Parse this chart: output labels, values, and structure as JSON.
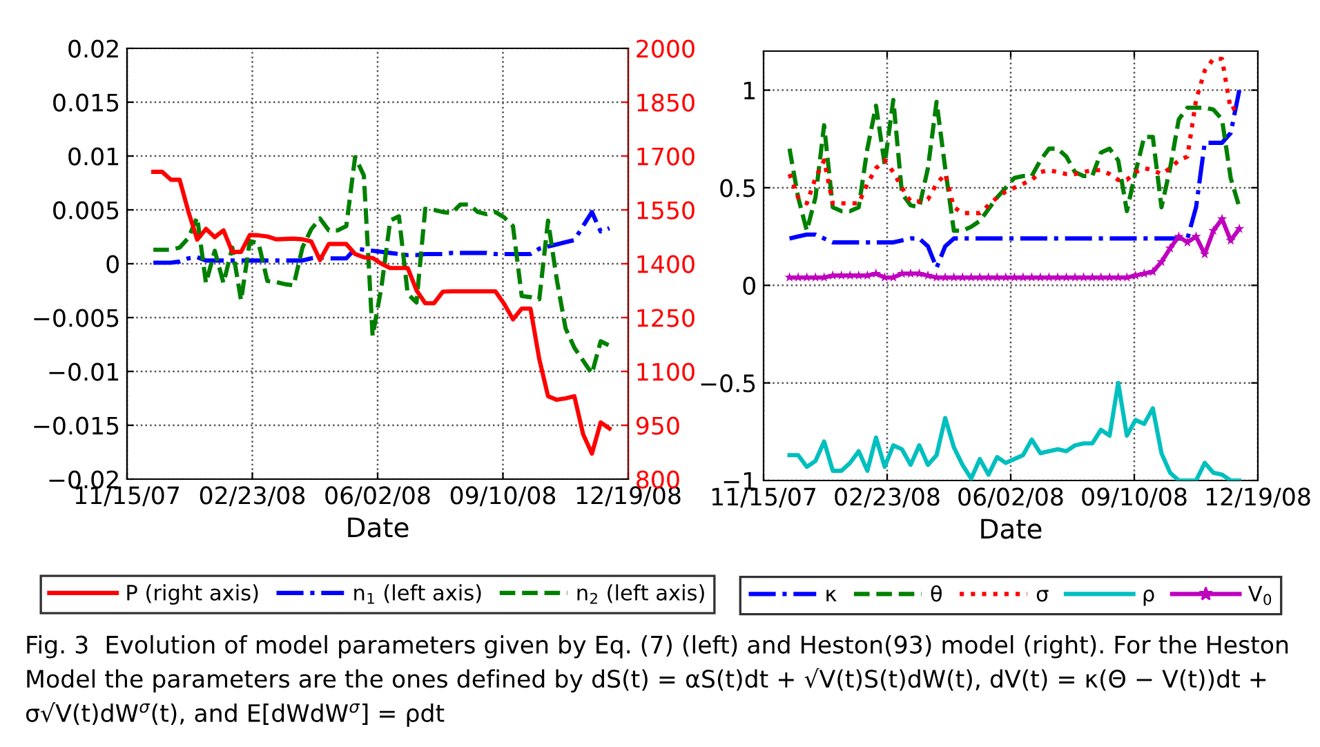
{
  "chart_data": [
    {
      "type": "line",
      "xlabel": "Date",
      "legend": "bottom",
      "grid": true,
      "x": [
        "2007-12-06",
        "2007-12-13",
        "2007-12-20",
        "2007-12-27",
        "2008-01-03",
        "2008-01-10",
        "2008-01-17",
        "2008-01-24",
        "2008-01-31",
        "2008-02-07",
        "2008-02-14",
        "2008-02-21",
        "2008-02-28",
        "2008-03-06",
        "2008-03-13",
        "2008-03-20",
        "2008-03-27",
        "2008-04-03",
        "2008-04-10",
        "2008-04-17",
        "2008-04-24",
        "2008-05-01",
        "2008-05-08",
        "2008-05-15",
        "2008-05-22",
        "2008-05-29",
        "2008-06-05",
        "2008-06-12",
        "2008-06-19",
        "2008-06-26",
        "2008-07-03",
        "2008-07-10",
        "2008-07-17",
        "2008-07-24",
        "2008-07-31",
        "2008-08-07",
        "2008-08-14",
        "2008-08-21",
        "2008-08-28",
        "2008-09-04",
        "2008-09-11",
        "2008-09-18",
        "2008-09-25",
        "2008-10-02",
        "2008-10-09",
        "2008-10-16",
        "2008-10-23",
        "2008-10-30",
        "2008-11-06",
        "2008-11-13",
        "2008-11-20",
        "2008-11-27",
        "2008-12-04"
      ],
      "xlim": [
        "2007-11-15",
        "2008-12-19"
      ],
      "xticks": [
        {
          "value": "2007-11-15",
          "label": "11/15/07"
        },
        {
          "value": "2008-02-23",
          "label": "02/23/08"
        },
        {
          "value": "2008-06-02",
          "label": "06/02/08"
        },
        {
          "value": "2008-09-10",
          "label": "09/10/08"
        },
        {
          "value": "2008-12-19",
          "label": "12/19/08"
        }
      ],
      "ylim": [
        -0.02,
        0.02
      ],
      "yticks": [
        {
          "value": -0.02,
          "label": "−0.02"
        },
        {
          "value": -0.015,
          "label": "−0.015"
        },
        {
          "value": -0.01,
          "label": "−0.01"
        },
        {
          "value": -0.005,
          "label": "−0.005"
        },
        0,
        0.005,
        0.01,
        0.015,
        0.02
      ],
      "y2lim": [
        800,
        2000
      ],
      "y2ticks": [
        800,
        950,
        1100,
        1250,
        1400,
        1550,
        1700,
        1850,
        2000
      ],
      "series": [
        {
          "name": "P (right axis)",
          "color": "#ff0000",
          "axis": "y2",
          "line_style": "solid",
          "values": [
            1656,
            1656,
            1634,
            1634,
            1545,
            1467,
            1497,
            1474,
            1493,
            1433,
            1433,
            1480,
            1479,
            1476,
            1468,
            1469,
            1470,
            1468,
            1462,
            1410,
            1455,
            1455,
            1455,
            1427,
            1418,
            1416,
            1400,
            1388,
            1388,
            1388,
            1326,
            1290,
            1290,
            1322,
            1323,
            1323,
            1323,
            1323,
            1323,
            1323,
            1288,
            1245,
            1275,
            1275,
            1134,
            1031,
            1021,
            1025,
            1031,
            925,
            871,
            958,
            941
          ]
        },
        {
          "name": "n$_{1}$ (left axis)",
          "color": "#0000ff",
          "line_style": "dashdot",
          "values": [
            0.0001,
            0.0001,
            0.0001,
            0.0002,
            0.0005,
            0.0006,
            0.0003,
            0.0003,
            0.0003,
            0.0003,
            0.0003,
            0.0003,
            0.0003,
            0.0003,
            0.0003,
            0.0003,
            0.0003,
            0.0003,
            0.0005,
            0.0006,
            0.0005,
            0.0005,
            0.0005,
            0.0014,
            0.0013,
            0.0012,
            0.0011,
            0.001,
            0.0009,
            0.0008,
            0.0008,
            0.0009,
            0.0009,
            0.0009,
            0.001,
            0.001,
            0.001,
            0.001,
            0.001,
            0.0009,
            0.0009,
            0.0009,
            0.0009,
            0.0009,
            0.0014,
            0.0016,
            0.0018,
            0.002,
            0.0022,
            0.0035,
            0.0048,
            0.003,
            0.0033
          ]
        },
        {
          "name": "n$_{2}$ (left axis)",
          "color": "#008000",
          "line_style": "dashed",
          "values": [
            0.0013,
            0.0013,
            0.0013,
            0.0015,
            0.0024,
            0.0043,
            -0.0018,
            0.0012,
            -0.0018,
            0.0015,
            -0.0034,
            0.0021,
            0.0019,
            -0.0016,
            -0.0017,
            -0.0019,
            -0.002,
            0.0015,
            0.0032,
            0.0042,
            0.0031,
            0.0031,
            0.0035,
            0.0099,
            0.0082,
            -0.0067,
            -0.0022,
            0.004,
            0.0044,
            -0.0028,
            -0.0036,
            0.0051,
            0.005,
            0.0048,
            0.0047,
            0.0055,
            0.0055,
            0.0048,
            0.0046,
            0.0048,
            0.0043,
            0.0035,
            -0.003,
            -0.0031,
            -0.0033,
            0.004,
            -0.0015,
            -0.006,
            -0.0078,
            -0.009,
            -0.0102,
            -0.0072,
            -0.0076
          ]
        }
      ],
      "annotations": [
        "Fig. 3  Evolution of model parameters given by Eq. (7) (left) and Heston(93) model (right). For the Heston Model the parameters are the ones defined by dS(t) = αS(t)dt + √V(t)S(t)dW(t), dV(t) = κ(Θ − V(t))dt + σ√V(t)dW$^{σ}$(t), and E[dWdW$^{σ}$] = ρdt"
      ]
    },
    {
      "type": "line",
      "xlabel": "Date",
      "legend": "bottom",
      "grid": true,
      "x": [
        "2007-12-06",
        "2007-12-13",
        "2007-12-20",
        "2007-12-27",
        "2008-01-03",
        "2008-01-10",
        "2008-01-17",
        "2008-01-24",
        "2008-01-31",
        "2008-02-07",
        "2008-02-14",
        "2008-02-21",
        "2008-02-28",
        "2008-03-06",
        "2008-03-13",
        "2008-03-20",
        "2008-03-27",
        "2008-04-03",
        "2008-04-10",
        "2008-04-17",
        "2008-04-24",
        "2008-05-01",
        "2008-05-08",
        "2008-05-15",
        "2008-05-22",
        "2008-05-29",
        "2008-06-05",
        "2008-06-12",
        "2008-06-19",
        "2008-06-26",
        "2008-07-03",
        "2008-07-10",
        "2008-07-17",
        "2008-07-24",
        "2008-07-31",
        "2008-08-07",
        "2008-08-14",
        "2008-08-21",
        "2008-08-28",
        "2008-09-04",
        "2008-09-11",
        "2008-09-18",
        "2008-09-25",
        "2008-10-02",
        "2008-10-09",
        "2008-10-16",
        "2008-10-23",
        "2008-10-30",
        "2008-11-06",
        "2008-11-13",
        "2008-11-20",
        "2008-11-27",
        "2008-12-04"
      ],
      "xlim": [
        "2007-11-15",
        "2008-12-19"
      ],
      "xticks": [
        {
          "value": "2007-11-15",
          "label": "11/15/07"
        },
        {
          "value": "2008-02-23",
          "label": "02/23/08"
        },
        {
          "value": "2008-06-02",
          "label": "06/02/08"
        },
        {
          "value": "2008-09-10",
          "label": "09/10/08"
        },
        {
          "value": "2008-12-19",
          "label": "12/19/08"
        }
      ],
      "ylim": [
        -1,
        1.2
      ],
      "yticks": [
        {
          "value": -1,
          "label": "−1"
        },
        {
          "value": -0.5,
          "label": "−0.5"
        },
        0,
        0.5,
        1
      ],
      "series": [
        {
          "name": "κ",
          "color": "#0000ff",
          "line_style": "dashdot",
          "marker": "none",
          "values": [
            0.24,
            0.25,
            0.26,
            0.26,
            0.24,
            0.22,
            0.22,
            0.22,
            0.22,
            0.22,
            0.22,
            0.22,
            0.22,
            0.23,
            0.24,
            0.24,
            0.2,
            0.09,
            0.2,
            0.24,
            0.24,
            0.24,
            0.24,
            0.24,
            0.24,
            0.24,
            0.24,
            0.24,
            0.24,
            0.24,
            0.24,
            0.24,
            0.24,
            0.24,
            0.24,
            0.24,
            0.24,
            0.24,
            0.24,
            0.24,
            0.24,
            0.24,
            0.24,
            0.24,
            0.24,
            0.24,
            0.24,
            0.4,
            0.73,
            0.73,
            0.73,
            0.78,
            1.0
          ]
        },
        {
          "name": "θ",
          "color": "#008000",
          "line_style": "dashed",
          "marker": "none",
          "values": [
            0.7,
            0.45,
            0.28,
            0.45,
            0.82,
            0.4,
            0.38,
            0.38,
            0.4,
            0.7,
            0.92,
            0.62,
            0.95,
            0.47,
            0.41,
            0.4,
            0.6,
            0.94,
            0.6,
            0.28,
            0.28,
            0.3,
            0.33,
            0.39,
            0.45,
            0.5,
            0.55,
            0.56,
            0.56,
            0.64,
            0.7,
            0.7,
            0.66,
            0.58,
            0.56,
            0.56,
            0.68,
            0.7,
            0.64,
            0.38,
            0.58,
            0.76,
            0.76,
            0.4,
            0.6,
            0.85,
            0.91,
            0.91,
            0.91,
            0.9,
            0.85,
            0.55,
            0.4
          ]
        },
        {
          "name": "σ",
          "color": "#ff0000",
          "line_style": "dotted",
          "marker": "none",
          "values": [
            0.57,
            0.45,
            0.42,
            0.55,
            0.64,
            0.42,
            0.42,
            0.42,
            0.42,
            0.52,
            0.6,
            0.64,
            0.58,
            0.5,
            0.43,
            0.43,
            0.44,
            0.52,
            0.57,
            0.4,
            0.37,
            0.37,
            0.37,
            0.41,
            0.45,
            0.48,
            0.5,
            0.52,
            0.54,
            0.58,
            0.59,
            0.58,
            0.57,
            0.57,
            0.58,
            0.59,
            0.59,
            0.57,
            0.54,
            0.54,
            0.58,
            0.6,
            0.59,
            0.57,
            0.6,
            0.64,
            0.66,
            0.95,
            1.1,
            1.16,
            1.16,
            0.9,
            0.92
          ]
        },
        {
          "name": "ρ",
          "color": "#00bfbf",
          "line_style": "solid",
          "marker": "none",
          "values": [
            -0.87,
            -0.87,
            -0.93,
            -0.9,
            -0.8,
            -0.95,
            -0.95,
            -0.91,
            -0.85,
            -0.95,
            -0.78,
            -0.93,
            -0.82,
            -0.84,
            -0.92,
            -0.82,
            -0.92,
            -0.87,
            -0.68,
            -0.83,
            -0.92,
            -0.99,
            -0.89,
            -0.97,
            -0.88,
            -0.91,
            -0.89,
            -0.87,
            -0.79,
            -0.86,
            -0.85,
            -0.84,
            -0.85,
            -0.82,
            -0.81,
            -0.81,
            -0.74,
            -0.77,
            -0.5,
            -0.77,
            -0.69,
            -0.71,
            -0.63,
            -0.86,
            -0.96,
            -1.0,
            -1.0,
            -1.0,
            -0.91,
            -0.96,
            -0.97,
            -1.0,
            -1.0
          ]
        },
        {
          "name": "V$_{0}$",
          "color": "#bf00bf",
          "line_style": "solid",
          "marker": "star",
          "values": [
            0.04,
            0.04,
            0.04,
            0.04,
            0.04,
            0.05,
            0.05,
            0.05,
            0.05,
            0.05,
            0.06,
            0.04,
            0.04,
            0.06,
            0.06,
            0.06,
            0.05,
            0.04,
            0.04,
            0.04,
            0.04,
            0.04,
            0.04,
            0.04,
            0.04,
            0.04,
            0.04,
            0.04,
            0.04,
            0.04,
            0.04,
            0.04,
            0.04,
            0.04,
            0.04,
            0.04,
            0.04,
            0.04,
            0.04,
            0.04,
            0.05,
            0.06,
            0.07,
            0.12,
            0.19,
            0.25,
            0.22,
            0.25,
            0.16,
            0.28,
            0.34,
            0.23,
            0.29
          ]
        }
      ]
    }
  ]
}
